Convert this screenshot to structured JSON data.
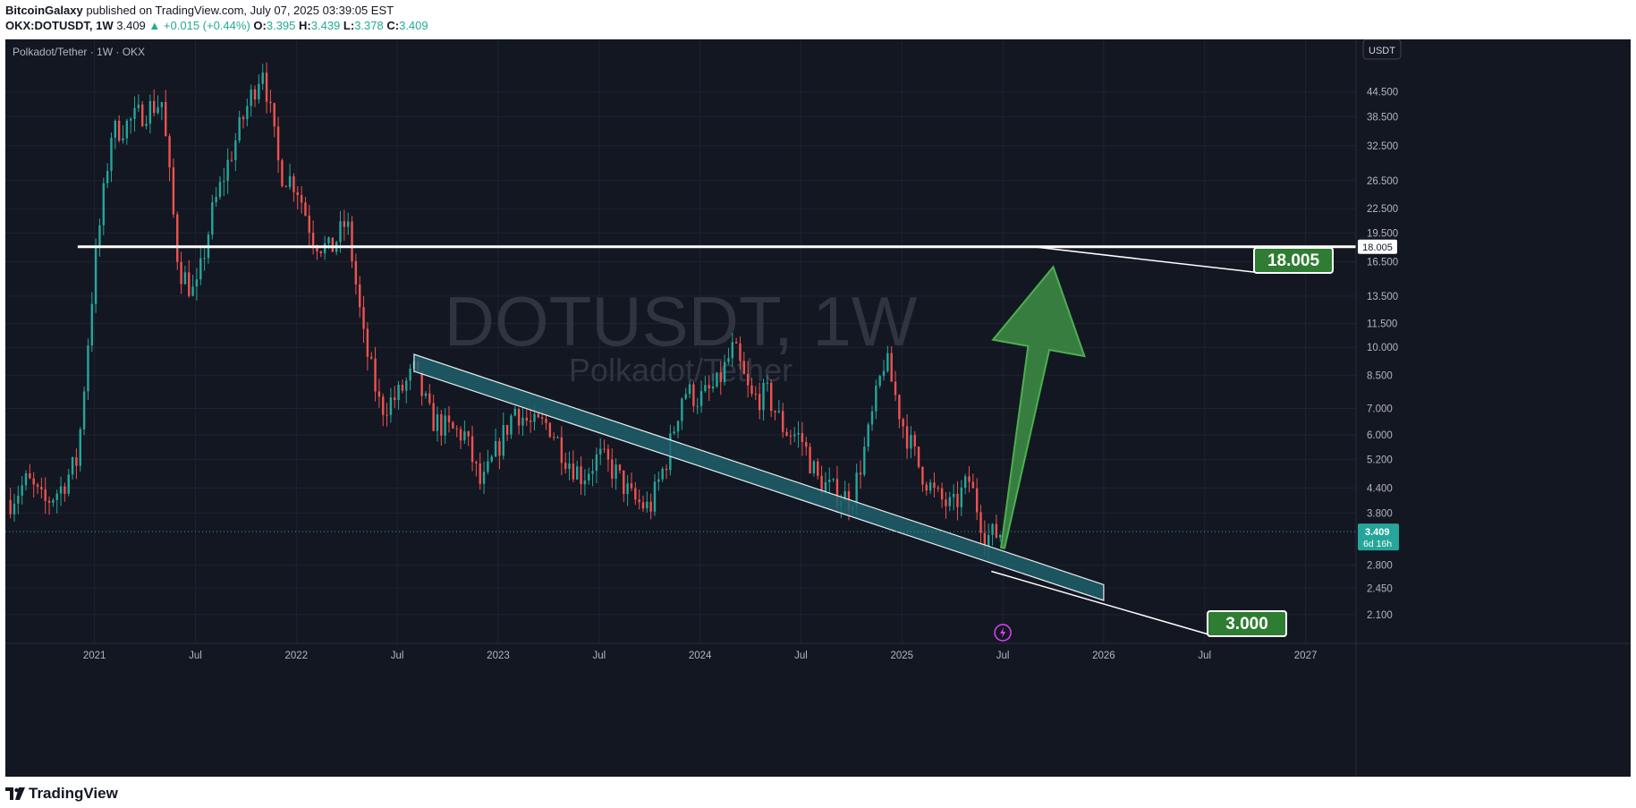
{
  "header": {
    "publisher": "BitcoinGalaxy",
    "published_text": "published on TradingView.com, July 07, 2025 03:39:05 EST",
    "symbol_line": "OKX:DOTUSDT, 1W",
    "last": "3.409",
    "change_arrow": "▲",
    "change": "+0.015 (+0.44%)",
    "o_label": "O:",
    "o": "3.395",
    "h_label": "H:",
    "h": "3.439",
    "l_label": "L:",
    "l": "3.378",
    "c_label": "C:",
    "c": "3.409"
  },
  "footer": {
    "brand": "TradingView",
    "logo_icon": "tradingview-logo-icon"
  },
  "colors": {
    "background": "#131722",
    "up": "#26a69a",
    "down": "#ef5350",
    "grid": "#1f2330",
    "axis_text": "#b2b5be",
    "channel": "#1f5f6b",
    "arrow": "#3f8f45",
    "label_box": "#2e7d32"
  },
  "chart_data": {
    "type": "candlestick",
    "symbol_title": "Polkadot/Tether · 1W · OKX",
    "watermark": "DOTUSDT, 1W",
    "watermark_sub": "Polkadot/Tether",
    "y_scale": "log",
    "ylim": [
      1.85,
      58
    ],
    "currency_badge": "USDT",
    "y_ticks": [
      "44.500",
      "38.500",
      "32.500",
      "26.500",
      "22.500",
      "19.500",
      "16.500",
      "13.500",
      "11.500",
      "10.000",
      "8.500",
      "7.000",
      "6.000",
      "5.200",
      "4.400",
      "3.800",
      "2.800",
      "2.450",
      "2.100"
    ],
    "x_ticks": [
      "2021",
      "Jul",
      "2022",
      "Jul",
      "2023",
      "Jul",
      "2024",
      "Jul",
      "2025",
      "Jul",
      "2026",
      "Jul",
      "2027"
    ],
    "last_price": "3.409",
    "countdown": "6d 16h",
    "resistance": {
      "value": 18.005,
      "label": "18.005",
      "axis_label": "18.005",
      "from": "2020-12",
      "to": "2026-07"
    },
    "support_label": {
      "value": 3.0,
      "label": "3.000",
      "date": "2025-06"
    },
    "channel": {
      "upper": [
        [
          "2022-08",
          9.6
        ],
        [
          "2026-01",
          2.5
        ]
      ],
      "lower": [
        [
          "2022-08",
          8.7
        ],
        [
          "2026-01",
          2.28
        ]
      ]
    },
    "projection_arrow": {
      "from": [
        "2025-07",
        3.1
      ],
      "to": [
        "2025-10",
        16.0
      ]
    },
    "closes": [
      [
        "2020-08",
        4.1
      ],
      [
        "2020-09",
        4.6
      ],
      [
        "2020-10",
        4.0
      ],
      [
        "2020-11",
        4.4
      ],
      [
        "2020-12",
        5.2
      ],
      [
        "2021-01",
        16.0
      ],
      [
        "2021-02",
        35.0
      ],
      [
        "2021-03",
        37.0
      ],
      [
        "2021-04",
        40.0
      ],
      [
        "2021-05",
        42.0
      ],
      [
        "2021-06",
        16.0
      ],
      [
        "2021-07",
        13.5
      ],
      [
        "2021-08",
        22.0
      ],
      [
        "2021-09",
        30.0
      ],
      [
        "2021-10",
        40.0
      ],
      [
        "2021-11",
        52.0
      ],
      [
        "2021-12",
        28.0
      ],
      [
        "2022-01",
        26.0
      ],
      [
        "2022-02",
        19.0
      ],
      [
        "2022-03",
        17.5
      ],
      [
        "2022-04",
        21.0
      ],
      [
        "2022-05",
        10.5
      ],
      [
        "2022-06",
        7.0
      ],
      [
        "2022-07",
        7.5
      ],
      [
        "2022-08",
        8.7
      ],
      [
        "2022-09",
        6.6
      ],
      [
        "2022-10",
        6.2
      ],
      [
        "2022-11",
        6.0
      ],
      [
        "2022-12",
        4.4
      ],
      [
        "2023-01",
        5.6
      ],
      [
        "2023-02",
        7.0
      ],
      [
        "2023-03",
        6.3
      ],
      [
        "2023-04",
        6.4
      ],
      [
        "2023-05",
        5.3
      ],
      [
        "2023-06",
        4.7
      ],
      [
        "2023-07",
        5.3
      ],
      [
        "2023-08",
        4.8
      ],
      [
        "2023-09",
        4.1
      ],
      [
        "2023-10",
        3.9
      ],
      [
        "2023-11",
        5.2
      ],
      [
        "2023-12",
        7.8
      ],
      [
        "2024-01",
        7.4
      ],
      [
        "2024-02",
        8.0
      ],
      [
        "2024-03",
        10.0
      ],
      [
        "2024-04",
        7.4
      ],
      [
        "2024-05",
        7.6
      ],
      [
        "2024-06",
        6.2
      ],
      [
        "2024-07",
        5.9
      ],
      [
        "2024-08",
        4.6
      ],
      [
        "2024-09",
        4.3
      ],
      [
        "2024-10",
        4.1
      ],
      [
        "2024-11",
        6.0
      ],
      [
        "2024-12",
        9.5
      ],
      [
        "2025-01",
        6.5
      ],
      [
        "2025-02",
        5.0
      ],
      [
        "2025-03",
        4.2
      ],
      [
        "2025-04",
        3.9
      ],
      [
        "2025-05",
        4.6
      ],
      [
        "2025-06",
        3.3
      ],
      [
        "2025-07",
        3.409
      ]
    ]
  }
}
